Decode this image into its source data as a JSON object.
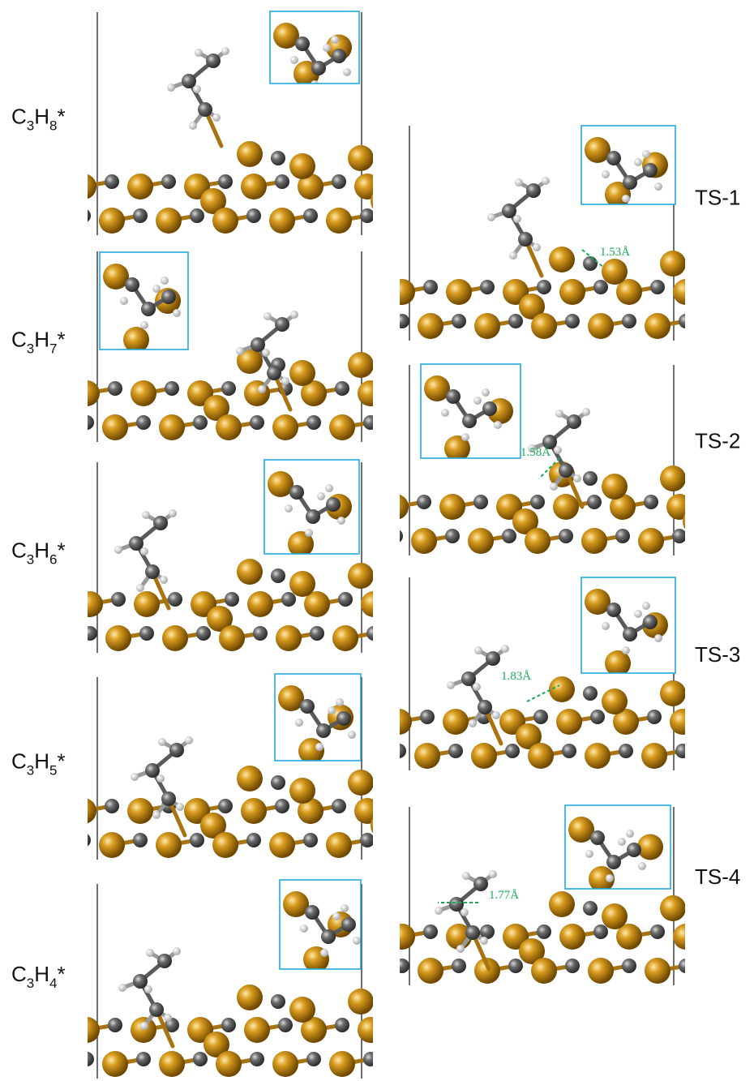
{
  "adsorbates": [
    {
      "label": [
        "C",
        "3",
        "H",
        "8",
        "*"
      ]
    },
    {
      "label": [
        "C",
        "3",
        "H",
        "7",
        "*"
      ]
    },
    {
      "label": [
        "C",
        "3",
        "H",
        "6",
        "*"
      ]
    },
    {
      "label": [
        "C",
        "3",
        "H",
        "5",
        "*"
      ]
    },
    {
      "label": [
        "C",
        "3",
        "H",
        "4",
        "*"
      ]
    }
  ],
  "transition_states": [
    {
      "label": "TS-1",
      "distance": "1.53Å"
    },
    {
      "label": "TS-2",
      "distance": "1.58Å"
    },
    {
      "label": "TS-3",
      "distance": "1.83Å"
    },
    {
      "label": "TS-4",
      "distance": "1.77Å"
    }
  ]
}
